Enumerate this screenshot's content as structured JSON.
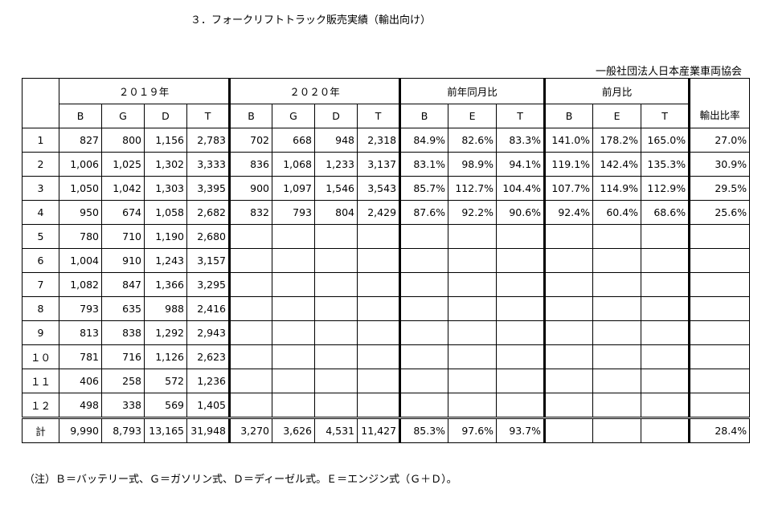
{
  "title": "３．フォークリフトトラック販売実績（輸出向け）",
  "organization": "一般社団法人日本産業車両協会",
  "table": {
    "groups": [
      "２０１９年",
      "２０２０年",
      "前年同月比",
      "前月比"
    ],
    "ratio_header": "輸出比率",
    "subheaders": {
      "y2019": [
        "B",
        "G",
        "D",
        "T"
      ],
      "y2020": [
        "B",
        "G",
        "D",
        "T"
      ],
      "yoy": [
        "B",
        "E",
        "T"
      ],
      "mom": [
        "B",
        "E",
        "T"
      ]
    },
    "rows": [
      {
        "label": "1",
        "y2019": [
          "827",
          "800",
          "1,156",
          "2,783"
        ],
        "y2020": [
          "702",
          "668",
          "948",
          "2,318"
        ],
        "yoy": [
          "84.9%",
          "82.6%",
          "83.3%"
        ],
        "mom": [
          "141.0%",
          "178.2%",
          "165.0%"
        ],
        "ratio": "27.0%"
      },
      {
        "label": "2",
        "y2019": [
          "1,006",
          "1,025",
          "1,302",
          "3,333"
        ],
        "y2020": [
          "836",
          "1,068",
          "1,233",
          "3,137"
        ],
        "yoy": [
          "83.1%",
          "98.9%",
          "94.1%"
        ],
        "mom": [
          "119.1%",
          "142.4%",
          "135.3%"
        ],
        "ratio": "30.9%"
      },
      {
        "label": "3",
        "y2019": [
          "1,050",
          "1,042",
          "1,303",
          "3,395"
        ],
        "y2020": [
          "900",
          "1,097",
          "1,546",
          "3,543"
        ],
        "yoy": [
          "85.7%",
          "112.7%",
          "104.4%"
        ],
        "mom": [
          "107.7%",
          "114.9%",
          "112.9%"
        ],
        "ratio": "29.5%"
      },
      {
        "label": "4",
        "y2019": [
          "950",
          "674",
          "1,058",
          "2,682"
        ],
        "y2020": [
          "832",
          "793",
          "804",
          "2,429"
        ],
        "yoy": [
          "87.6%",
          "92.2%",
          "90.6%"
        ],
        "mom": [
          "92.4%",
          "60.4%",
          "68.6%"
        ],
        "ratio": "25.6%"
      },
      {
        "label": "5",
        "y2019": [
          "780",
          "710",
          "1,190",
          "2,680"
        ],
        "y2020": [
          "",
          "",
          "",
          ""
        ],
        "yoy": [
          "",
          "",
          ""
        ],
        "mom": [
          "",
          "",
          ""
        ],
        "ratio": ""
      },
      {
        "label": "6",
        "y2019": [
          "1,004",
          "910",
          "1,243",
          "3,157"
        ],
        "y2020": [
          "",
          "",
          "",
          ""
        ],
        "yoy": [
          "",
          "",
          ""
        ],
        "mom": [
          "",
          "",
          ""
        ],
        "ratio": ""
      },
      {
        "label": "7",
        "y2019": [
          "1,082",
          "847",
          "1,366",
          "3,295"
        ],
        "y2020": [
          "",
          "",
          "",
          ""
        ],
        "yoy": [
          "",
          "",
          ""
        ],
        "mom": [
          "",
          "",
          ""
        ],
        "ratio": ""
      },
      {
        "label": "8",
        "y2019": [
          "793",
          "635",
          "988",
          "2,416"
        ],
        "y2020": [
          "",
          "",
          "",
          ""
        ],
        "yoy": [
          "",
          "",
          ""
        ],
        "mom": [
          "",
          "",
          ""
        ],
        "ratio": ""
      },
      {
        "label": "9",
        "y2019": [
          "813",
          "838",
          "1,292",
          "2,943"
        ],
        "y2020": [
          "",
          "",
          "",
          ""
        ],
        "yoy": [
          "",
          "",
          ""
        ],
        "mom": [
          "",
          "",
          ""
        ],
        "ratio": ""
      },
      {
        "label": "１０",
        "y2019": [
          "781",
          "716",
          "1,126",
          "2,623"
        ],
        "y2020": [
          "",
          "",
          "",
          ""
        ],
        "yoy": [
          "",
          "",
          ""
        ],
        "mom": [
          "",
          "",
          ""
        ],
        "ratio": ""
      },
      {
        "label": "１１",
        "y2019": [
          "406",
          "258",
          "572",
          "1,236"
        ],
        "y2020": [
          "",
          "",
          "",
          ""
        ],
        "yoy": [
          "",
          "",
          ""
        ],
        "mom": [
          "",
          "",
          ""
        ],
        "ratio": ""
      },
      {
        "label": "１２",
        "y2019": [
          "498",
          "338",
          "569",
          "1,405"
        ],
        "y2020": [
          "",
          "",
          "",
          ""
        ],
        "yoy": [
          "",
          "",
          ""
        ],
        "mom": [
          "",
          "",
          ""
        ],
        "ratio": ""
      }
    ],
    "total": {
      "label": "計",
      "y2019": [
        "9,990",
        "8,793",
        "13,165",
        "31,948"
      ],
      "y2020": [
        "3,270",
        "3,626",
        "4,531",
        "11,427"
      ],
      "yoy": [
        "85.3%",
        "97.6%",
        "93.7%"
      ],
      "mom": [
        "",
        "",
        ""
      ],
      "ratio": "28.4%"
    }
  },
  "note": "（注）Ｂ＝バッテリー式、Ｇ＝ガソリン式、Ｄ＝ディーゼル式。Ｅ＝エンジン式（Ｇ＋Ｄ）。"
}
